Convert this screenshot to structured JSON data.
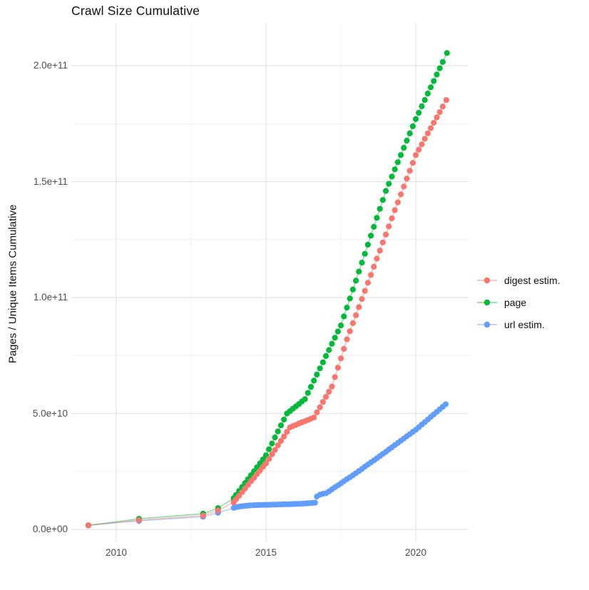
{
  "title": "Crawl Size Cumulative",
  "axes": {
    "y_title": "Pages / Unique Items Cumulative",
    "x_ticks": [
      {
        "value": 2010,
        "label": "2010"
      },
      {
        "value": 2015,
        "label": "2015"
      },
      {
        "value": 2020,
        "label": "2020"
      }
    ],
    "y_ticks": [
      {
        "value": 0,
        "label": "0.0e+00"
      },
      {
        "value": 50,
        "label": "5.0e+10"
      },
      {
        "value": 100,
        "label": "1.0e+11"
      },
      {
        "value": 150,
        "label": "1.5e+11"
      },
      {
        "value": 200,
        "label": "2.0e+11"
      }
    ]
  },
  "legend": {
    "items": [
      {
        "label": "digest estim.",
        "color": "#F8766D"
      },
      {
        "label": "page",
        "color": "#00BA38"
      },
      {
        "label": "url estim.",
        "color": "#619CFF"
      }
    ]
  },
  "colors": {
    "background": "#FFFFFF",
    "grid_major": "#E4E4E4",
    "grid_minor": "#F1F1F1",
    "tick_text": "#4D4D4D",
    "digest_estim": "#F8766D",
    "page": "#00BA38",
    "url_estim": "#619CFF"
  },
  "chart_data": {
    "type": "line",
    "subtype": "scatter-line (points with connecting lines)",
    "title": "Crawl Size Cumulative",
    "xlabel": "",
    "ylabel": "Pages / Unique Items Cumulative",
    "value_unit": "billions (1e9) of pages / unique items, cumulative",
    "grid": "on",
    "legend_position": "right",
    "x_domain": [
      2008.5,
      2021.76
    ],
    "y_domain": [
      -5.5,
      218.2
    ],
    "x_major_gridlines": [
      2010,
      2015,
      2020
    ],
    "x_minor_gridlines": [
      2012.5,
      2017.5
    ],
    "y_major_gridlines": [
      0,
      50,
      100,
      150,
      200
    ],
    "y_minor_gridlines": [
      25,
      75,
      125,
      175
    ],
    "series": [
      {
        "name": "digest estim.",
        "color": "#F8766D",
        "points": [
          [
            2009.07,
            1.8
          ],
          [
            2010.76,
            4.0
          ],
          [
            2012.9,
            6.0
          ],
          [
            2013.4,
            8.2
          ],
          [
            2013.92,
            11.7
          ],
          [
            2014.0,
            13.0
          ],
          [
            2014.1,
            14.5
          ],
          [
            2014.2,
            16.1
          ],
          [
            2014.3,
            17.6
          ],
          [
            2014.4,
            19.2
          ],
          [
            2014.5,
            20.8
          ],
          [
            2014.6,
            22.3
          ],
          [
            2014.7,
            23.9
          ],
          [
            2014.8,
            25.4
          ],
          [
            2014.9,
            27.0
          ],
          [
            2015.0,
            28.5
          ],
          [
            2015.1,
            30.4
          ],
          [
            2015.2,
            32.4
          ],
          [
            2015.3,
            34.3
          ],
          [
            2015.4,
            36.3
          ],
          [
            2015.5,
            38.2
          ],
          [
            2015.6,
            40.1
          ],
          [
            2015.7,
            42.1
          ],
          [
            2015.8,
            44.0
          ],
          [
            2015.9,
            44.6
          ],
          [
            2016.0,
            45.1
          ],
          [
            2016.1,
            45.7
          ],
          [
            2016.2,
            46.2
          ],
          [
            2016.3,
            46.7
          ],
          [
            2016.4,
            47.2
          ],
          [
            2016.5,
            47.8
          ],
          [
            2016.6,
            48.3
          ],
          [
            2016.7,
            50.5
          ],
          [
            2016.8,
            52.7
          ],
          [
            2016.9,
            55.0
          ],
          [
            2017.0,
            57.2
          ],
          [
            2017.1,
            59.4
          ],
          [
            2017.2,
            61.6
          ],
          [
            2017.3,
            65.7
          ],
          [
            2017.4,
            69.8
          ],
          [
            2017.5,
            73.8
          ],
          [
            2017.6,
            77.9
          ],
          [
            2017.7,
            82.0
          ],
          [
            2017.8,
            85.5
          ],
          [
            2017.9,
            89.0
          ],
          [
            2018.0,
            92.4
          ],
          [
            2018.1,
            95.9
          ],
          [
            2018.2,
            99.4
          ],
          [
            2018.3,
            102.9
          ],
          [
            2018.4,
            106.4
          ],
          [
            2018.5,
            109.8
          ],
          [
            2018.6,
            113.3
          ],
          [
            2018.7,
            116.8
          ],
          [
            2018.8,
            120.3
          ],
          [
            2018.9,
            123.8
          ],
          [
            2019.0,
            127.2
          ],
          [
            2019.1,
            130.7
          ],
          [
            2019.2,
            134.2
          ],
          [
            2019.3,
            137.7
          ],
          [
            2019.4,
            141.1
          ],
          [
            2019.5,
            144.5
          ],
          [
            2019.6,
            147.9
          ],
          [
            2019.7,
            151.3
          ],
          [
            2019.8,
            154.7
          ],
          [
            2019.9,
            158.1
          ],
          [
            2020.0,
            161.5
          ],
          [
            2020.1,
            163.8
          ],
          [
            2020.2,
            166.1
          ],
          [
            2020.3,
            168.5
          ],
          [
            2020.4,
            170.8
          ],
          [
            2020.5,
            173.1
          ],
          [
            2020.6,
            175.4
          ],
          [
            2020.7,
            177.7
          ],
          [
            2020.8,
            180.0
          ],
          [
            2020.9,
            182.4
          ],
          [
            2021.02,
            185.2
          ]
        ]
      },
      {
        "name": "page",
        "color": "#00BA38",
        "points": [
          [
            2009.07,
            1.8
          ],
          [
            2010.76,
            4.6
          ],
          [
            2012.9,
            6.8
          ],
          [
            2013.4,
            9.2
          ],
          [
            2013.92,
            13.5
          ],
          [
            2014.0,
            14.9
          ],
          [
            2014.1,
            16.6
          ],
          [
            2014.2,
            18.3
          ],
          [
            2014.3,
            20.0
          ],
          [
            2014.4,
            21.7
          ],
          [
            2014.5,
            23.4
          ],
          [
            2014.6,
            25.1
          ],
          [
            2014.7,
            26.8
          ],
          [
            2014.8,
            28.5
          ],
          [
            2014.9,
            30.2
          ],
          [
            2015.0,
            32.0
          ],
          [
            2015.1,
            34.6
          ],
          [
            2015.2,
            37.1
          ],
          [
            2015.3,
            39.7
          ],
          [
            2015.4,
            42.3
          ],
          [
            2015.5,
            44.9
          ],
          [
            2015.6,
            47.4
          ],
          [
            2015.7,
            50.0
          ],
          [
            2015.8,
            51.0
          ],
          [
            2015.9,
            52.1
          ],
          [
            2016.0,
            53.1
          ],
          [
            2016.1,
            54.1
          ],
          [
            2016.2,
            55.2
          ],
          [
            2016.3,
            56.2
          ],
          [
            2016.4,
            58.9
          ],
          [
            2016.5,
            61.5
          ],
          [
            2016.6,
            64.2
          ],
          [
            2016.7,
            66.8
          ],
          [
            2016.8,
            69.5
          ],
          [
            2016.9,
            72.1
          ],
          [
            2017.0,
            74.8
          ],
          [
            2017.1,
            77.4
          ],
          [
            2017.2,
            80.1
          ],
          [
            2017.3,
            82.7
          ],
          [
            2017.4,
            85.4
          ],
          [
            2017.5,
            88.0
          ],
          [
            2017.6,
            91.9
          ],
          [
            2017.7,
            95.7
          ],
          [
            2017.8,
            99.6
          ],
          [
            2017.9,
            103.5
          ],
          [
            2018.0,
            107.3
          ],
          [
            2018.1,
            111.2
          ],
          [
            2018.2,
            115.1
          ],
          [
            2018.3,
            118.9
          ],
          [
            2018.4,
            122.8
          ],
          [
            2018.5,
            126.7
          ],
          [
            2018.6,
            130.5
          ],
          [
            2018.7,
            134.4
          ],
          [
            2018.8,
            138.3
          ],
          [
            2018.9,
            142.1
          ],
          [
            2019.0,
            146.0
          ],
          [
            2019.1,
            149.1
          ],
          [
            2019.2,
            152.2
          ],
          [
            2019.3,
            155.3
          ],
          [
            2019.4,
            158.4
          ],
          [
            2019.5,
            161.5
          ],
          [
            2019.6,
            164.6
          ],
          [
            2019.7,
            167.7
          ],
          [
            2019.8,
            170.8
          ],
          [
            2019.9,
            173.9
          ],
          [
            2020.0,
            177.0
          ],
          [
            2020.1,
            179.7
          ],
          [
            2020.2,
            182.5
          ],
          [
            2020.3,
            185.2
          ],
          [
            2020.4,
            188.0
          ],
          [
            2020.5,
            190.7
          ],
          [
            2020.6,
            193.4
          ],
          [
            2020.7,
            196.2
          ],
          [
            2020.8,
            198.9
          ],
          [
            2020.9,
            201.6
          ],
          [
            2021.04,
            205.5
          ]
        ]
      },
      {
        "name": "url estim.",
        "color": "#619CFF",
        "points": [
          [
            2009.07,
            1.8
          ],
          [
            2010.76,
            3.7
          ],
          [
            2012.9,
            5.5
          ],
          [
            2013.4,
            7.2
          ],
          [
            2013.92,
            9.3
          ],
          [
            2014.0,
            9.6
          ],
          [
            2014.08,
            9.8
          ],
          [
            2014.16,
            9.95
          ],
          [
            2014.24,
            10.1
          ],
          [
            2014.32,
            10.2
          ],
          [
            2014.4,
            10.3
          ],
          [
            2014.48,
            10.38
          ],
          [
            2014.56,
            10.44
          ],
          [
            2014.64,
            10.48
          ],
          [
            2014.72,
            10.52
          ],
          [
            2014.8,
            10.55
          ],
          [
            2014.88,
            10.58
          ],
          [
            2014.96,
            10.6
          ],
          [
            2015.04,
            10.63
          ],
          [
            2015.12,
            10.66
          ],
          [
            2015.2,
            10.7
          ],
          [
            2015.28,
            10.73
          ],
          [
            2015.36,
            10.76
          ],
          [
            2015.44,
            10.79
          ],
          [
            2015.52,
            10.82
          ],
          [
            2015.6,
            10.85
          ],
          [
            2015.68,
            10.88
          ],
          [
            2015.76,
            10.91
          ],
          [
            2015.84,
            10.94
          ],
          [
            2015.92,
            10.97
          ],
          [
            2016.0,
            11.0
          ],
          [
            2016.08,
            11.05
          ],
          [
            2016.16,
            11.1
          ],
          [
            2016.24,
            11.15
          ],
          [
            2016.32,
            11.22
          ],
          [
            2016.4,
            11.3
          ],
          [
            2016.48,
            11.38
          ],
          [
            2016.56,
            11.46
          ],
          [
            2016.64,
            11.55
          ],
          [
            2016.7,
            14.2
          ],
          [
            2016.8,
            15.0
          ],
          [
            2016.9,
            15.4
          ],
          [
            2017.0,
            15.6
          ],
          [
            2017.1,
            16.4
          ],
          [
            2017.2,
            17.3
          ],
          [
            2017.3,
            18.2
          ],
          [
            2017.4,
            19.0
          ],
          [
            2017.5,
            19.9
          ],
          [
            2017.6,
            20.8
          ],
          [
            2017.7,
            21.7
          ],
          [
            2017.8,
            22.5
          ],
          [
            2017.9,
            23.4
          ],
          [
            2018.0,
            24.3
          ],
          [
            2018.1,
            25.2
          ],
          [
            2018.2,
            26.1
          ],
          [
            2018.3,
            27.1
          ],
          [
            2018.4,
            28.0
          ],
          [
            2018.5,
            28.9
          ],
          [
            2018.6,
            29.8
          ],
          [
            2018.7,
            30.7
          ],
          [
            2018.8,
            31.6
          ],
          [
            2018.9,
            32.6
          ],
          [
            2019.0,
            33.5
          ],
          [
            2019.1,
            34.5
          ],
          [
            2019.2,
            35.4
          ],
          [
            2019.3,
            36.4
          ],
          [
            2019.4,
            37.3
          ],
          [
            2019.5,
            38.3
          ],
          [
            2019.6,
            39.2
          ],
          [
            2019.7,
            40.2
          ],
          [
            2019.8,
            41.1
          ],
          [
            2019.9,
            42.1
          ],
          [
            2020.0,
            43.0
          ],
          [
            2020.1,
            44.1
          ],
          [
            2020.2,
            45.2
          ],
          [
            2020.3,
            46.3
          ],
          [
            2020.4,
            47.4
          ],
          [
            2020.5,
            48.5
          ],
          [
            2020.6,
            49.6
          ],
          [
            2020.7,
            50.7
          ],
          [
            2020.8,
            51.8
          ],
          [
            2020.9,
            52.9
          ],
          [
            2021.0,
            54.0
          ]
        ]
      }
    ]
  }
}
